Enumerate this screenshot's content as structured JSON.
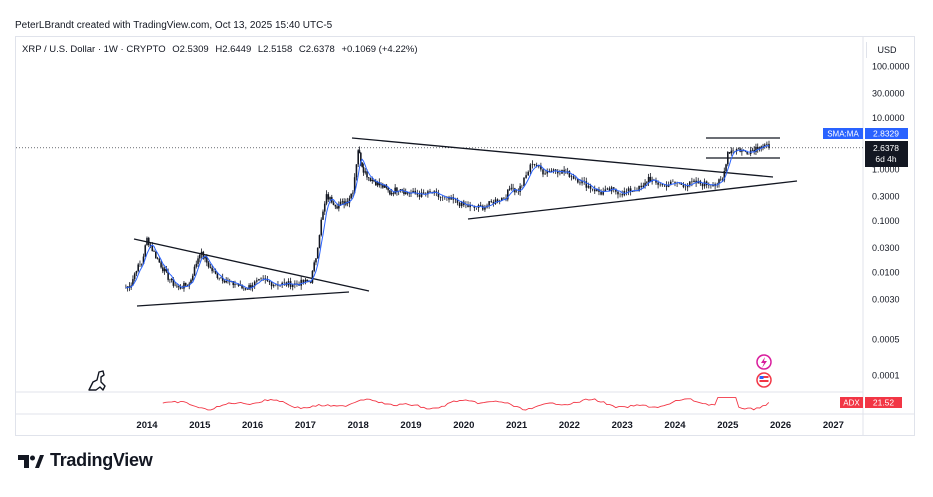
{
  "header": {
    "credit": "PeterLBrandt created with TradingView.com, Oct 13, 2025 15:40 UTC-5"
  },
  "symbol": {
    "name": "XRP / U.S. Dollar · 1W · CRYPTO",
    "open": "O2.5309",
    "high": "H2.6449",
    "low": "L2.5158",
    "close": "C2.6378",
    "change": "+0.1069 (+4.22%)"
  },
  "currency": "USD",
  "price_axis": {
    "ticks": [
      "100.0000",
      "30.0000",
      "10.0000",
      "1.0000",
      "0.3000",
      "0.1000",
      "0.0300",
      "0.0100",
      "0.0030",
      "0.0005",
      "0.0001"
    ],
    "tags": {
      "sma_label": "SMA:MA",
      "sma_value": "2.8329",
      "last_price": "2.6378",
      "countdown": "6d 4h"
    }
  },
  "time_axis": {
    "years": [
      "2014",
      "2015",
      "2016",
      "2017",
      "2018",
      "2019",
      "2020",
      "2021",
      "2022",
      "2023",
      "2024",
      "2025",
      "2026",
      "2027"
    ]
  },
  "indicator": {
    "name": "ADX",
    "value": "21.52"
  },
  "colors": {
    "candles": "#131722",
    "sma": "#2962ff",
    "adx": "#f23645",
    "trendlines": "#131722",
    "grid": "#e0e3eb"
  },
  "footer": {
    "brand": "TradingView"
  },
  "chart_data": {
    "type": "line",
    "title": "XRP / U.S. Dollar · 1W · CRYPTO",
    "y_scale": "log",
    "ylim": [
      5e-05,
      100
    ],
    "xlim": [
      2013.4,
      2027.5
    ],
    "series": [
      {
        "x": [
          2013.6,
          2013.7,
          2013.8,
          2013.9,
          2014.0,
          2014.1,
          2014.2,
          2014.3,
          2014.4,
          2014.5,
          2014.6,
          2014.7,
          2014.8,
          2014.9,
          2015.0,
          2015.1,
          2015.2,
          2015.3,
          2015.4,
          2015.5,
          2015.6,
          2015.7,
          2015.8,
          2015.9,
          2016.0,
          2016.2,
          2016.4,
          2016.6,
          2016.8,
          2017.0,
          2017.1,
          2017.2,
          2017.3,
          2017.4,
          2017.5,
          2017.6,
          2017.7,
          2017.8,
          2017.9,
          2018.0,
          2018.05,
          2018.1,
          2018.2,
          2018.3,
          2018.4,
          2018.5,
          2018.6,
          2018.7,
          2018.8,
          2018.9,
          2019.0,
          2019.2,
          2019.4,
          2019.6,
          2019.8,
          2020.0,
          2020.2,
          2020.4,
          2020.6,
          2020.8,
          2020.9,
          2021.0,
          2021.1,
          2021.3,
          2021.5,
          2021.7,
          2021.9,
          2022.0,
          2022.2,
          2022.4,
          2022.6,
          2022.8,
          2023.0,
          2023.2,
          2023.4,
          2023.5,
          2023.6,
          2023.8,
          2024.0,
          2024.2,
          2024.4,
          2024.6,
          2024.8,
          2024.9,
          2025.0,
          2025.1,
          2025.2,
          2025.3,
          2025.4,
          2025.5,
          2025.6,
          2025.7,
          2025.78
        ],
        "values": [
          0.005,
          0.006,
          0.012,
          0.015,
          0.045,
          0.028,
          0.018,
          0.012,
          0.008,
          0.006,
          0.005,
          0.0055,
          0.006,
          0.012,
          0.025,
          0.018,
          0.012,
          0.009,
          0.008,
          0.007,
          0.006,
          0.006,
          0.005,
          0.005,
          0.006,
          0.007,
          0.006,
          0.006,
          0.006,
          0.0065,
          0.007,
          0.02,
          0.1,
          0.3,
          0.25,
          0.2,
          0.22,
          0.25,
          0.4,
          2.5,
          1.5,
          1.0,
          0.7,
          0.6,
          0.5,
          0.45,
          0.35,
          0.4,
          0.45,
          0.35,
          0.35,
          0.32,
          0.35,
          0.27,
          0.25,
          0.2,
          0.18,
          0.19,
          0.25,
          0.3,
          0.5,
          0.35,
          0.5,
          1.4,
          0.9,
          1.0,
          0.9,
          0.8,
          0.6,
          0.45,
          0.35,
          0.4,
          0.35,
          0.4,
          0.45,
          0.7,
          0.55,
          0.5,
          0.55,
          0.5,
          0.55,
          0.52,
          0.55,
          0.6,
          2.2,
          2.4,
          2.5,
          2.2,
          2.3,
          2.5,
          3.0,
          2.9,
          2.6378
        ]
      }
    ]
  }
}
